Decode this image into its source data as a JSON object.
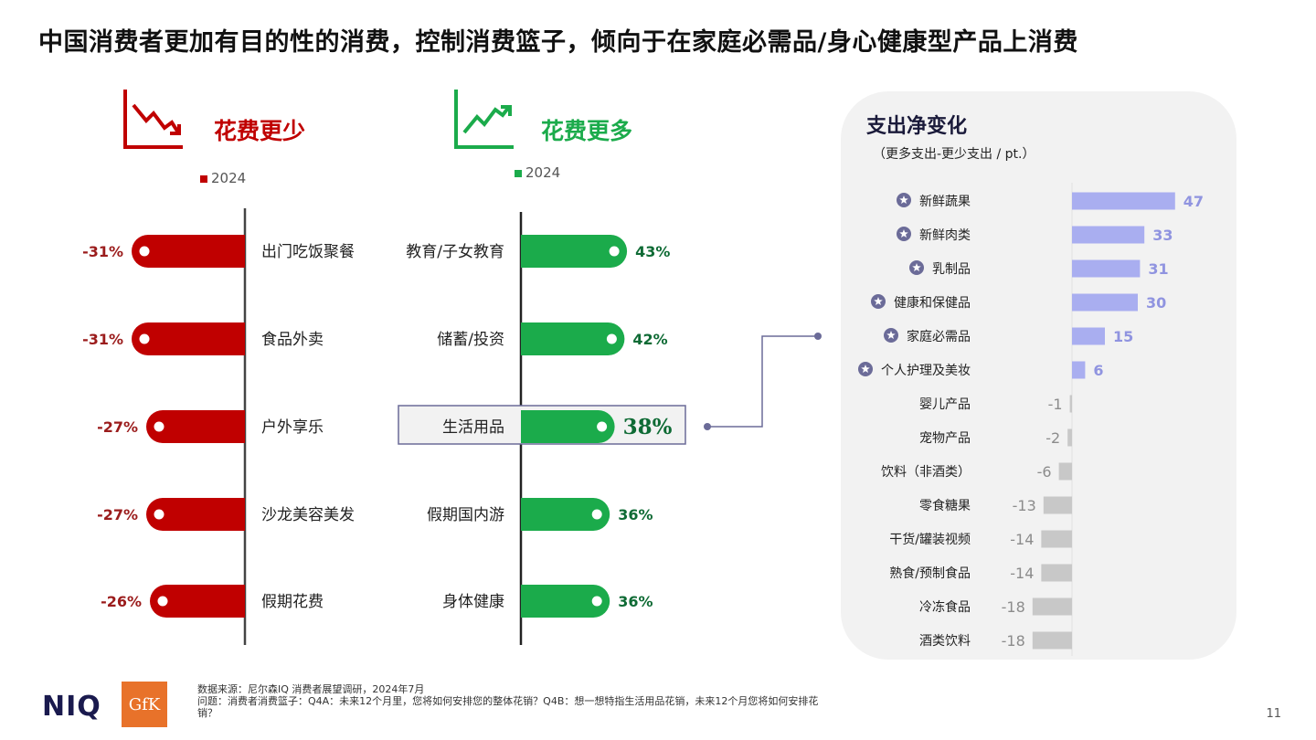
{
  "title": "中国消费者更加有目的性的消费，控制消费篮子，倾向于在家庭必需品/身心健康型产品上消费",
  "colors": {
    "less": "#c00000",
    "less_label": "#9b1c1c",
    "more": "#1bab4b",
    "more_label": "#0f6b35",
    "pos_bar": "#a9aef0",
    "pos_label": "#9094e0",
    "neg_bar": "#c8c8c8",
    "neg_label": "#8c8c8c",
    "star": "#6b6b98"
  },
  "icons": {
    "less": "trend-down-icon",
    "more": "trend-up-icon",
    "star": "star-icon"
  },
  "spend_less": {
    "title": "花费更少",
    "legend": "2024"
  },
  "spend_more": {
    "title": "花费更多",
    "legend": "2024"
  },
  "net_change": {
    "title": "支出净变化",
    "subtitle": "（更多支出-更少支出 / pt.）"
  },
  "chart_data": [
    {
      "type": "bar",
      "title": "花费更少",
      "series": [
        {
          "name": "2024",
          "values": [
            -31,
            -31,
            -27,
            -27,
            -26
          ]
        }
      ],
      "categories": [
        "出门吃饭聚餐",
        "食品外卖",
        "户外享乐",
        "沙龙美容美发",
        "假期花费"
      ],
      "value_labels": [
        "-31%",
        "-31%",
        "-27%",
        "-27%",
        "-26%"
      ]
    },
    {
      "type": "bar",
      "title": "花费更多",
      "series": [
        {
          "name": "2024",
          "values": [
            43,
            42,
            38,
            36,
            36
          ]
        }
      ],
      "categories": [
        "教育/子女教育",
        "储蓄/投资",
        "生活用品",
        "假期国内游",
        "身体健康"
      ],
      "value_labels": [
        "43%",
        "42%",
        "38%",
        "36%",
        "36%"
      ],
      "highlighted": "生活用品"
    },
    {
      "type": "bar",
      "title": "支出净变化",
      "categories": [
        "新鲜蔬果",
        "新鲜肉类",
        "乳制品",
        "健康和保健品",
        "家庭必需品",
        "个人护理及美妆",
        "婴儿产品",
        "宠物产品",
        "饮料（非酒类）",
        "零食糖果",
        "干货/罐装视频",
        "熟食/预制食品",
        "冷冻食品",
        "酒类饮料"
      ],
      "values": [
        47,
        33,
        31,
        30,
        15,
        6,
        -1,
        -2,
        -6,
        -13,
        -14,
        -14,
        -18,
        -18
      ],
      "starred": [
        true,
        true,
        true,
        true,
        true,
        true,
        false,
        false,
        false,
        false,
        false,
        false,
        false,
        false
      ]
    }
  ],
  "footer": {
    "source": "数据来源：尼尔森IQ 消费者展望调研，2024年7月",
    "question": "问题：消费者消费篮子：Q4A：未来12个月里，您将如何安排您的整体花销？Q4B：想一想特指生活用品花销，未来12个月您将如何安排花销？",
    "niq": "NIQ",
    "gfk": "GfK",
    "page": "11"
  }
}
